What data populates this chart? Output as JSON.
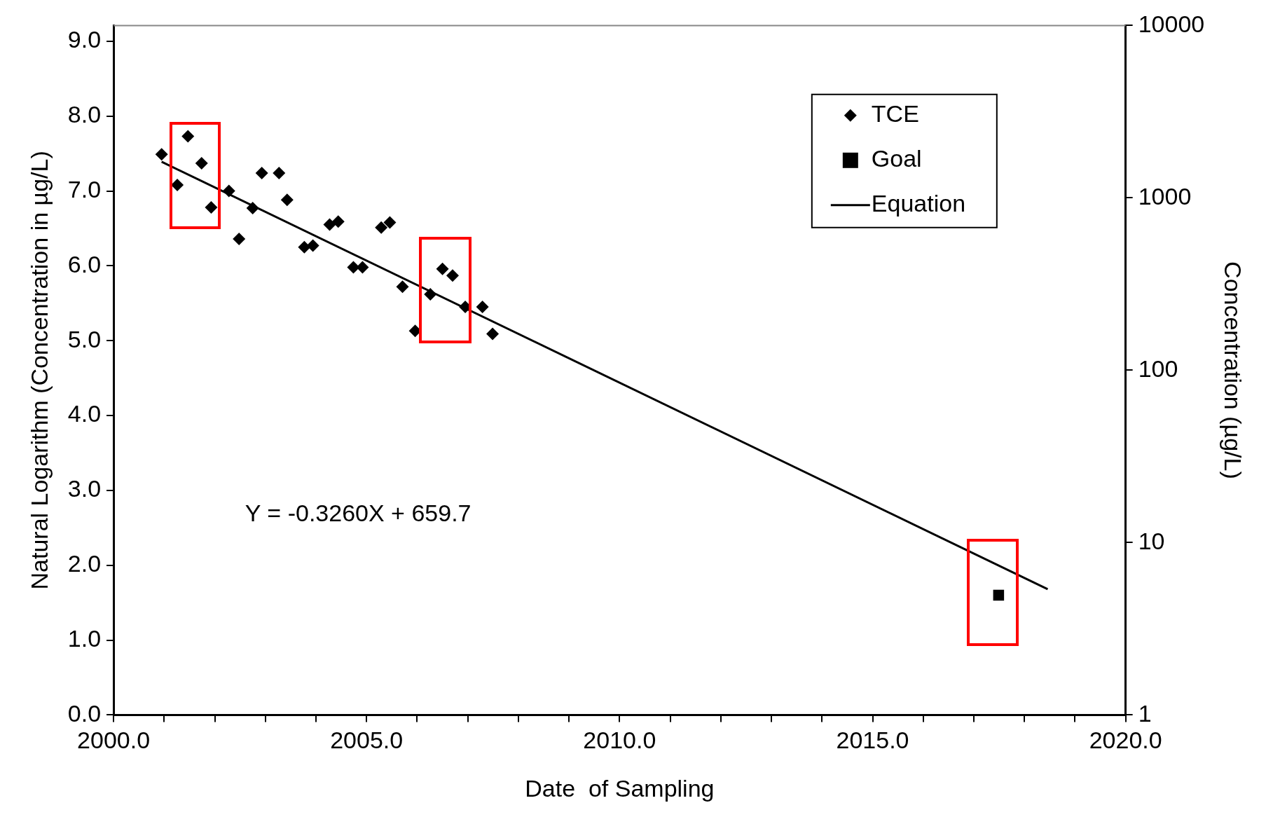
{
  "chart_data": {
    "type": "scatter",
    "xlabel": "Date  of Sampling",
    "ylabel": "Natural Logarithm (Concentration in µg/L)",
    "y2label": "Concentration (µg/L)",
    "xlim": [
      2000,
      2020
    ],
    "xticks": [
      {
        "value": 2000,
        "label": "2000.0"
      },
      {
        "value": 2001,
        "label": null
      },
      {
        "value": 2002,
        "label": null
      },
      {
        "value": 2003,
        "label": null
      },
      {
        "value": 2004,
        "label": null
      },
      {
        "value": 2005,
        "label": "2005.0"
      },
      {
        "value": 2006,
        "label": null
      },
      {
        "value": 2007,
        "label": null
      },
      {
        "value": 2008,
        "label": null
      },
      {
        "value": 2009,
        "label": null
      },
      {
        "value": 2010,
        "label": "2010.0"
      },
      {
        "value": 2011,
        "label": null
      },
      {
        "value": 2012,
        "label": null
      },
      {
        "value": 2013,
        "label": null
      },
      {
        "value": 2014,
        "label": null
      },
      {
        "value": 2015,
        "label": "2015.0"
      },
      {
        "value": 2016,
        "label": null
      },
      {
        "value": 2017,
        "label": null
      },
      {
        "value": 2018,
        "label": null
      },
      {
        "value": 2019,
        "label": null
      },
      {
        "value": 2020,
        "label": "2020.0"
      }
    ],
    "ylim": [
      0,
      9.21
    ],
    "yticks": [
      {
        "value": 0,
        "label": "0.0"
      },
      {
        "value": 1,
        "label": "1.0"
      },
      {
        "value": 2,
        "label": "2.0"
      },
      {
        "value": 3,
        "label": "3.0"
      },
      {
        "value": 4,
        "label": "4.0"
      },
      {
        "value": 5,
        "label": "5.0"
      },
      {
        "value": 6,
        "label": "6.0"
      },
      {
        "value": 7,
        "label": "7.0"
      },
      {
        "value": 8,
        "label": "8.0"
      },
      {
        "value": 9,
        "label": "9.0"
      }
    ],
    "y2lim": [
      1,
      10000
    ],
    "y2ticks": [
      1,
      10,
      100,
      1000,
      10000
    ],
    "log": "y2",
    "grid": false,
    "legend": "top right",
    "annotations": [
      "Y = -0.3260X + 659.7"
    ],
    "series": [
      {
        "name": "TCE",
        "marker": "diamond",
        "color": "#000000",
        "x": [
          2000.95,
          2001.26,
          2001.47,
          2001.74,
          2001.93,
          2002.28,
          2002.48,
          2002.75,
          2002.93,
          2003.27,
          2003.43,
          2003.77,
          2003.94,
          2004.27,
          2004.44,
          2004.74,
          2004.92,
          2005.29,
          2005.46,
          2005.71,
          2005.96,
          2006.26,
          2006.5,
          2006.7,
          2006.95,
          2007.29,
          2007.49
        ],
        "values": [
          7.49,
          7.08,
          7.73,
          7.37,
          6.78,
          7.0,
          6.36,
          6.77,
          7.24,
          7.24,
          6.88,
          6.25,
          6.27,
          6.55,
          6.59,
          5.98,
          5.98,
          6.51,
          6.58,
          5.72,
          5.13,
          5.62,
          5.96,
          5.87,
          5.45,
          5.45,
          5.09
        ]
      },
      {
        "name": "Goal",
        "marker": "square",
        "color": "#000000",
        "x": [
          2017.49
        ],
        "values": [
          1.6
        ]
      },
      {
        "name": "Equation",
        "type": "line",
        "marker": "none",
        "color": "#000000",
        "x": [
          2000.95,
          2018.46
        ],
        "values": [
          7.39,
          1.68
        ]
      }
    ]
  }
}
